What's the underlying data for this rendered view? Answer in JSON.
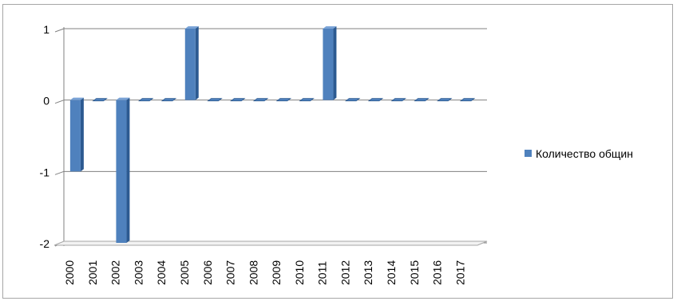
{
  "chart_data": {
    "type": "bar",
    "categories": [
      "2000",
      "2001",
      "2002",
      "2003",
      "2004",
      "2005",
      "2006",
      "2007",
      "2008",
      "2009",
      "2010",
      "2011",
      "2012",
      "2013",
      "2014",
      "2015",
      "2016",
      "2017"
    ],
    "series": [
      {
        "name": "Количество общин",
        "values": [
          -1,
          0,
          -2,
          0,
          0,
          1,
          0,
          0,
          0,
          0,
          0,
          1,
          0,
          0,
          0,
          0,
          0,
          0
        ]
      }
    ],
    "ylim": [
      -2,
      1
    ],
    "yticks": [
      1,
      0,
      -1,
      -2
    ],
    "grid": true,
    "legend_position": "right",
    "style": "3d-clustered-column",
    "colors": {
      "bar_front": "#4f81bd",
      "bar_side": "#2c5a91",
      "bar_top": "#7aa3d6",
      "grid": "#808080",
      "floor": "#a6a6a6"
    }
  }
}
